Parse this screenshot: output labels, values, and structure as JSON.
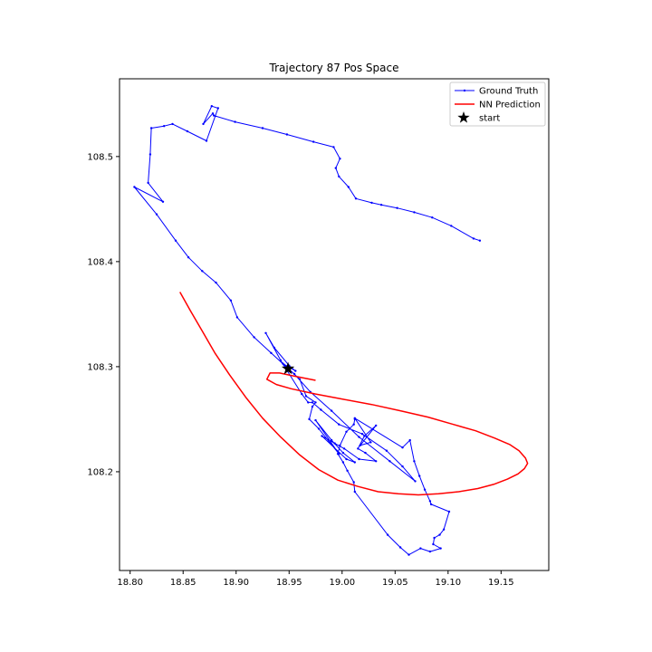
{
  "chart_data": {
    "type": "line",
    "title": "Trajectory 87 Pos Space",
    "xlabel": "",
    "ylabel": "",
    "xlim": [
      18.79,
      19.195
    ],
    "ylim": [
      108.106,
      108.574
    ],
    "xticks": [
      18.8,
      18.85,
      18.9,
      18.95,
      19.0,
      19.05,
      19.1,
      19.15
    ],
    "xtick_labels": [
      "18.80",
      "18.85",
      "18.90",
      "18.95",
      "19.00",
      "19.05",
      "19.10",
      "19.15"
    ],
    "yticks": [
      108.2,
      108.3,
      108.4,
      108.5
    ],
    "ytick_labels": [
      "108.2",
      "108.3",
      "108.4",
      "108.5"
    ],
    "grid": false,
    "legend_position": "upper right",
    "series": [
      {
        "name": "Ground Truth",
        "color": "#0000ff",
        "style": "line-with-dot-markers",
        "x": [
          19.13,
          19.124,
          19.103,
          19.085,
          19.068,
          19.052,
          19.037,
          19.028,
          19.013,
          19.006,
          18.997,
          18.994,
          18.998,
          18.992,
          18.973,
          18.948,
          18.925,
          18.899,
          18.879,
          18.878,
          18.869,
          18.877,
          18.883,
          18.872,
          18.854,
          18.84,
          18.832,
          18.82,
          18.819,
          18.817,
          18.831,
          18.804,
          18.825,
          18.843,
          18.855,
          18.868,
          18.881,
          18.895,
          18.901,
          18.917,
          18.933,
          18.945,
          18.955,
          18.97,
          18.99,
          19.016,
          19.045,
          19.069,
          19.057,
          19.042,
          19.019,
          18.997,
          18.98,
          18.972,
          18.968,
          18.962,
          18.942,
          18.928,
          18.936,
          18.95,
          18.956,
          18.944,
          18.96,
          18.966,
          18.975,
          18.972,
          18.969,
          18.978,
          18.997,
          18.975,
          18.99,
          19.001,
          19.012,
          19.004,
          18.981,
          18.993,
          19.002,
          19.016,
          19.032,
          19.022,
          19.015,
          19.021,
          19.032,
          19.017,
          19.027,
          19.012,
          19.057,
          19.064,
          19.068,
          19.073,
          19.078,
          19.083,
          19.084,
          19.101,
          19.096,
          19.092,
          19.087,
          19.086,
          19.093,
          19.083,
          19.074,
          19.063,
          19.055,
          19.043,
          19.012,
          19.011,
          19.005,
          19.001,
          18.996,
          18.998,
          19.004,
          19.011,
          19.012
        ],
        "y": [
          108.42,
          108.422,
          108.434,
          108.442,
          108.447,
          108.451,
          108.454,
          108.456,
          108.46,
          108.471,
          108.481,
          108.489,
          108.498,
          108.509,
          108.514,
          108.521,
          108.527,
          108.533,
          108.539,
          108.541,
          108.531,
          108.548,
          108.546,
          108.515,
          108.524,
          108.531,
          108.529,
          108.527,
          108.502,
          108.475,
          108.457,
          108.471,
          108.445,
          108.42,
          108.404,
          108.391,
          108.38,
          108.363,
          108.347,
          108.328,
          108.313,
          108.302,
          108.293,
          108.276,
          108.258,
          108.233,
          108.21,
          108.191,
          108.205,
          108.22,
          108.236,
          108.245,
          108.259,
          108.266,
          108.266,
          108.274,
          108.306,
          108.332,
          108.318,
          108.301,
          108.296,
          108.303,
          108.288,
          108.272,
          108.266,
          108.262,
          108.25,
          108.241,
          108.217,
          108.249,
          108.23,
          108.218,
          108.209,
          108.212,
          108.234,
          108.227,
          108.222,
          108.212,
          108.21,
          108.218,
          108.222,
          108.234,
          108.244,
          108.225,
          108.228,
          108.251,
          108.223,
          108.23,
          108.21,
          108.196,
          108.183,
          108.172,
          108.169,
          108.162,
          108.145,
          108.14,
          108.137,
          108.131,
          108.127,
          108.124,
          108.127,
          108.121,
          108.128,
          108.14,
          108.181,
          108.19,
          108.201,
          108.209,
          108.217,
          108.225,
          108.238,
          108.245,
          108.25
        ]
      },
      {
        "name": "NN Prediction",
        "color": "#ff0000",
        "style": "line",
        "x": [
          18.847,
          18.857,
          18.868,
          18.88,
          18.894,
          18.909,
          18.925,
          18.942,
          18.96,
          18.978,
          18.996,
          19.015,
          19.034,
          19.053,
          19.072,
          19.091,
          19.11,
          19.128,
          19.143,
          19.156,
          19.166,
          19.172,
          19.175,
          19.173,
          19.167,
          19.158,
          19.144,
          19.126,
          19.105,
          19.081,
          19.055,
          19.028,
          19.001,
          18.975,
          18.952,
          18.938,
          18.929,
          18.932,
          18.941,
          18.955,
          18.975
        ],
        "y": [
          108.371,
          108.353,
          108.334,
          108.313,
          108.292,
          108.271,
          108.251,
          108.233,
          108.216,
          108.202,
          108.192,
          108.186,
          108.181,
          108.179,
          108.178,
          108.179,
          108.181,
          108.184,
          108.188,
          108.193,
          108.198,
          108.203,
          108.208,
          108.213,
          108.22,
          108.226,
          108.232,
          108.239,
          108.245,
          108.252,
          108.258,
          108.264,
          108.269,
          108.274,
          108.279,
          108.283,
          108.288,
          108.294,
          108.294,
          108.291,
          108.287
        ]
      }
    ],
    "markers": [
      {
        "name": "start",
        "symbol": "star",
        "color": "#000000",
        "x": 18.949,
        "y": 108.298
      }
    ]
  }
}
